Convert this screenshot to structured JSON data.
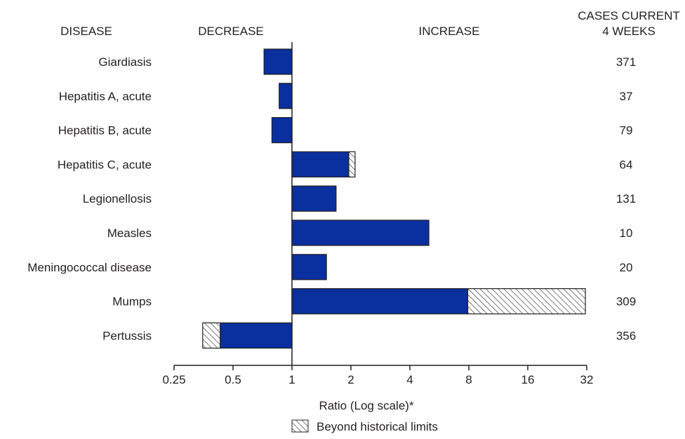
{
  "chart_data": {
    "type": "bar",
    "orientation": "horizontal",
    "headers": {
      "disease": "DISEASE",
      "decrease": "DECREASE",
      "increase": "INCREASE",
      "cases_line1": "CASES CURRENT",
      "cases_line2": "4 WEEKS"
    },
    "categories": [
      "Giardiasis",
      "Hepatitis A, acute",
      "Hepatitis B, acute",
      "Hepatitis C, acute",
      "Legionellosis",
      "Measles",
      "Meningococcal disease",
      "Mumps",
      "Pertussis"
    ],
    "ratios": [
      0.72,
      0.86,
      0.79,
      1.95,
      1.68,
      5.0,
      1.5,
      7.9,
      0.43
    ],
    "beyond_limits_extent": [
      null,
      null,
      null,
      2.1,
      null,
      null,
      null,
      31.5,
      0.35
    ],
    "cases_current_4_weeks": [
      "371",
      "37",
      "79",
      "64",
      "131",
      "10",
      "20",
      "309",
      "356"
    ],
    "x_scale": "log2",
    "xlim": [
      0.25,
      32
    ],
    "x_ticks": [
      "0.25",
      "0.5",
      "1",
      "2",
      "4",
      "8",
      "16",
      "32"
    ],
    "xlabel": "Ratio (Log scale)*",
    "legend": {
      "label": "Beyond historical limits",
      "position": "bottom-center"
    },
    "colors": {
      "bar": "#0a2f9e",
      "hatch": "#231f20",
      "text": "#231f20"
    }
  }
}
